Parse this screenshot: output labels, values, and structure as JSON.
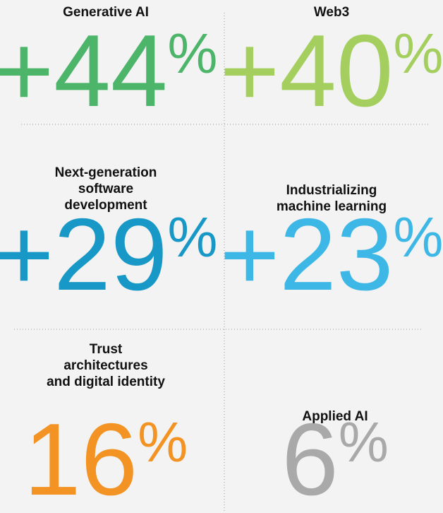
{
  "cells": [
    {
      "title": [
        "Generative AI"
      ],
      "value": "+44",
      "unit": "%",
      "color": "#4db56a"
    },
    {
      "title": [
        "Web3"
      ],
      "value": "+40",
      "unit": "%",
      "color": "#a4cf5f"
    },
    {
      "title": [
        "Next-generation",
        "software",
        "development"
      ],
      "value": "+29",
      "unit": "%",
      "color": "#1898c6"
    },
    {
      "title": [
        "Industrializing",
        "machine learning"
      ],
      "value": "+23",
      "unit": "%",
      "color": "#3db7e6"
    },
    {
      "title": [
        "Trust",
        "architectures",
        "and digital identity"
      ],
      "value": "16",
      "unit": "%",
      "color": "#f29324"
    },
    {
      "title": [
        "Applied AI"
      ],
      "value": "6",
      "unit": "%",
      "color": "#a9a9a9"
    }
  ]
}
